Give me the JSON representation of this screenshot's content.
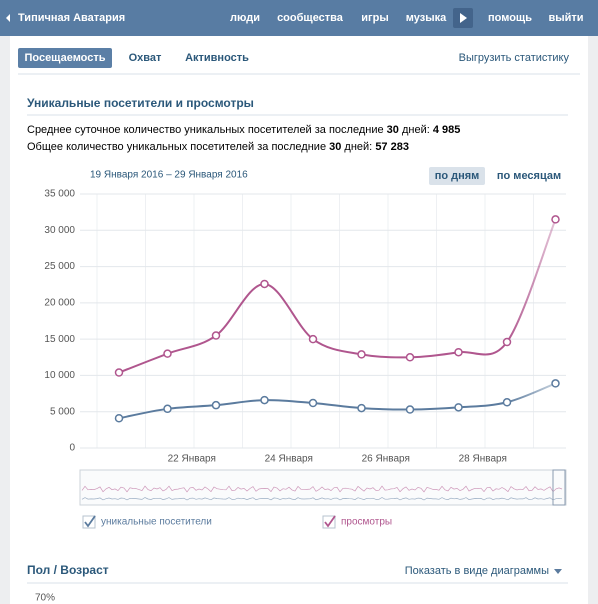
{
  "header": {
    "back": "Типичная Аватария",
    "nav": [
      "люди",
      "сообщества",
      "игры",
      "музыка",
      "помощь",
      "выйти"
    ]
  },
  "tabs": [
    "Посещаемость",
    "Охват",
    "Активность"
  ],
  "export": "Выгрузить статистику",
  "section": {
    "title": "Уникальные посетители и просмотры",
    "lines": [
      {
        "text": "Среднее суточное количество уникальных посетителей за последние ",
        "days": "30",
        "suffix": " дней: ",
        "value": "4 985"
      },
      {
        "text": "Общее количество уникальных посетителей за последние ",
        "days": "30",
        "suffix": " дней: ",
        "value": "57 283"
      }
    ]
  },
  "date_range": "19 Января 2016 – 29 Января 2016",
  "periods": [
    "по дням",
    "по месяцам"
  ],
  "chart_data": {
    "type": "line",
    "categories": [
      null,
      "22 Января",
      null,
      "24 Января",
      null,
      "26 Января",
      null,
      "28 Января",
      null,
      null
    ],
    "series": [
      {
        "name": "уникальные посетители",
        "color": "#5b7b9e",
        "values": [
          4100,
          5400,
          5900,
          6600,
          6200,
          5500,
          5300,
          5600,
          6300,
          8900
        ]
      },
      {
        "name": "просмотры",
        "color": "#b0568e",
        "values": [
          10400,
          13000,
          15500,
          22600,
          15000,
          12900,
          12500,
          13200,
          14600,
          31500
        ]
      }
    ],
    "ylim": [
      0,
      35000
    ],
    "yticks": [
      0,
      {
        "value": 5000,
        "label": "5 000"
      },
      {
        "value": 10000,
        "label": "10 000"
      },
      {
        "value": 15000,
        "label": "15 000"
      },
      {
        "value": 20000,
        "label": "20 000"
      },
      {
        "value": 25000,
        "label": "25 000"
      },
      {
        "value": 30000,
        "label": "30 000"
      },
      {
        "value": 35000,
        "label": "35 000"
      }
    ],
    "grid": true
  },
  "demographics": {
    "title": "Пол / Возраст",
    "toggle": "Показать в виде диаграммы",
    "first_tick": "70%"
  }
}
